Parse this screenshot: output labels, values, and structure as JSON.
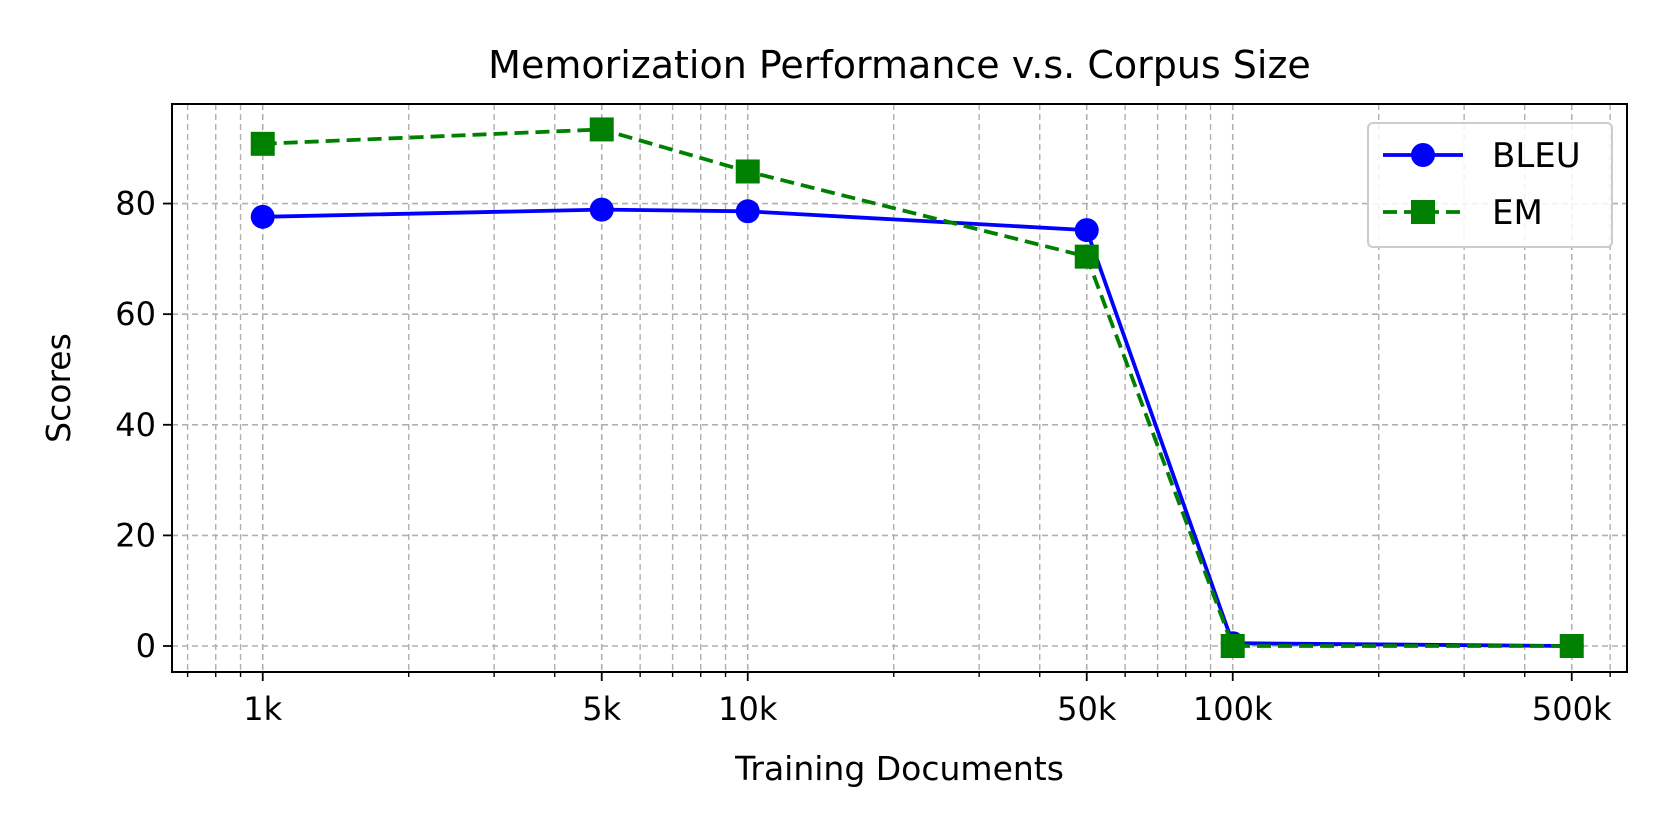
{
  "chart_data": {
    "type": "line",
    "title": "Memorization Performance v.s. Corpus Size",
    "xlabel": "Training Documents",
    "ylabel": "Scores",
    "xscale": "log",
    "x": [
      1000,
      5000,
      10000,
      50000,
      100000,
      500000
    ],
    "x_tick_labels": [
      "1k",
      "5k",
      "10k",
      "50k",
      "100k",
      "500k"
    ],
    "xlim": [
      650,
      650000
    ],
    "ylim": [
      -4.7,
      98
    ],
    "y_ticks": [
      0,
      20,
      40,
      60,
      80
    ],
    "grid": true,
    "legend_position": "top-right",
    "series": [
      {
        "name": "BLEU",
        "values": [
          77.6,
          78.9,
          78.6,
          75.2,
          0.5,
          0.0
        ],
        "color": "#0000ff",
        "marker": "circle",
        "linestyle": "solid"
      },
      {
        "name": "EM",
        "values": [
          90.8,
          93.4,
          85.8,
          70.4,
          0.0,
          0.0
        ],
        "color": "#008000",
        "marker": "square",
        "linestyle": "dashed"
      }
    ]
  }
}
